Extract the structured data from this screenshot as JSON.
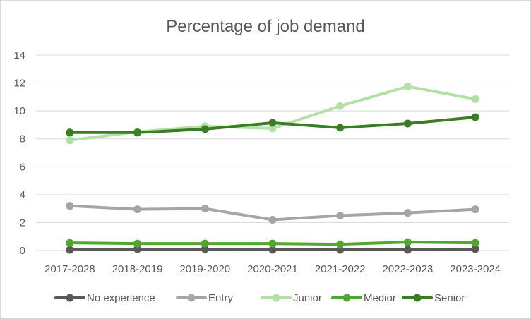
{
  "chart_data": {
    "type": "line",
    "title": "Percentage of job demand",
    "xlabel": "",
    "ylabel": "",
    "categories": [
      "2017-2028",
      "2018-2019",
      "2019-2020",
      "2020-2021",
      "2021-2022",
      "2022-2023",
      "2023-2024"
    ],
    "ylim": [
      0,
      14
    ],
    "yticks": [
      0,
      2,
      4,
      6,
      8,
      10,
      12,
      14
    ],
    "grid": true,
    "legend_position": "bottom",
    "series": [
      {
        "name": "No experience",
        "color": "#595959",
        "values": [
          0.05,
          0.1,
          0.1,
          0.05,
          0.05,
          0.05,
          0.1
        ]
      },
      {
        "name": "Entry",
        "color": "#a5a5a5",
        "values": [
          3.2,
          2.95,
          3.0,
          2.2,
          2.5,
          2.7,
          2.95
        ]
      },
      {
        "name": "Junior",
        "color": "#b3e0a6",
        "values": [
          7.9,
          8.5,
          8.9,
          8.75,
          10.35,
          11.75,
          10.85
        ]
      },
      {
        "name": "Medior",
        "color": "#4ea72e",
        "values": [
          0.55,
          0.5,
          0.5,
          0.5,
          0.45,
          0.6,
          0.55
        ]
      },
      {
        "name": "Senior",
        "color": "#3b7d23",
        "values": [
          8.45,
          8.45,
          8.7,
          9.15,
          8.8,
          9.1,
          9.55
        ]
      }
    ]
  }
}
